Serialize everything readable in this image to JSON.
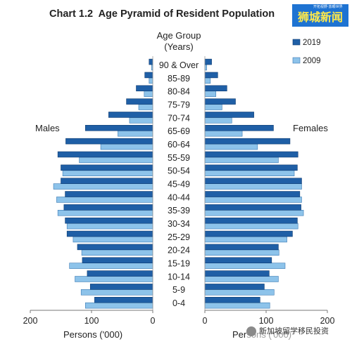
{
  "chart_data": {
    "type": "bar",
    "orientation": "horizontal-pyramid",
    "title": "Chart 1.2  Age Pyramid of Resident Population",
    "categories_label": [
      "Age Group",
      "(Years)"
    ],
    "categories": [
      "0-4",
      "5-9",
      "10-14",
      "15-19",
      "20-24",
      "25-29",
      "30-34",
      "35-39",
      "40-44",
      "45-49",
      "50-54",
      "55-59",
      "60-64",
      "65-69",
      "70-74",
      "75-79",
      "80-84",
      "85-89",
      "90 & Over"
    ],
    "left_group": "Males",
    "right_group": "Females",
    "xlabel": "Persons ('000)",
    "xlim": [
      0,
      200
    ],
    "xticks": [
      200,
      100,
      0
    ],
    "xticks_right": [
      0,
      100,
      200
    ],
    "legend": [
      "2019",
      "2009"
    ],
    "legend_position": "top-right",
    "series": [
      {
        "name": "2019",
        "color": "#1f5fa6",
        "males": [
          95,
          102,
          107,
          115,
          123,
          140,
          143,
          145,
          143,
          150,
          150,
          155,
          142,
          110,
          72,
          43,
          27,
          13,
          6
        ],
        "females": [
          90,
          97,
          105,
          109,
          120,
          143,
          151,
          157,
          155,
          158,
          151,
          152,
          139,
          112,
          80,
          50,
          36,
          21,
          11
        ]
      },
      {
        "name": "2009",
        "color": "#8dc3ea",
        "males": [
          110,
          117,
          127,
          136,
          116,
          130,
          140,
          155,
          157,
          162,
          147,
          120,
          85,
          57,
          38,
          23,
          14,
          6,
          2
        ],
        "females": [
          106,
          113,
          120,
          131,
          121,
          134,
          152,
          161,
          158,
          158,
          146,
          120,
          86,
          61,
          44,
          28,
          18,
          9,
          3
        ]
      }
    ]
  },
  "watermarks": {
    "top_badge": "狮城新闻",
    "top_badge_small": "开拓视野·放眼世界",
    "bottom_text": "新加坡留学移民投资"
  }
}
